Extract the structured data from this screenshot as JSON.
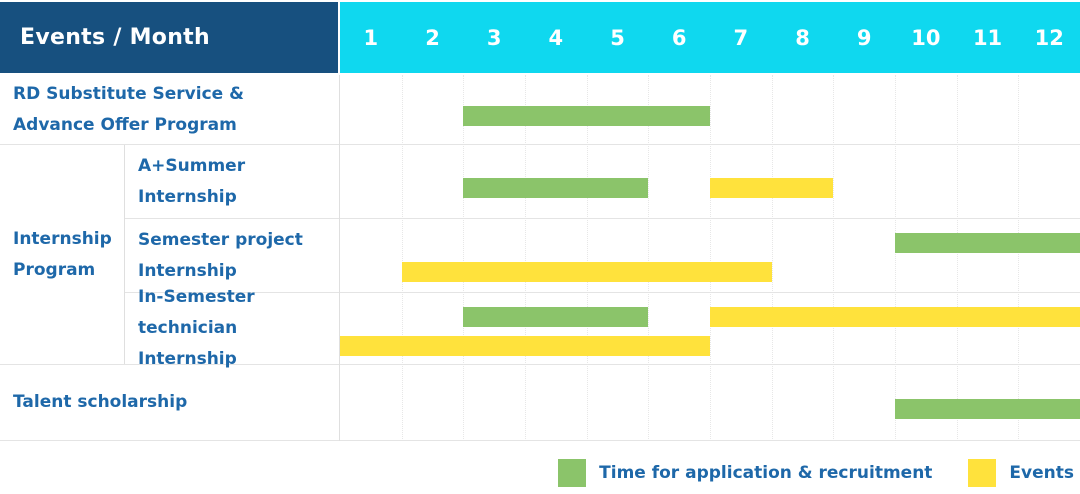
{
  "header": {
    "title": "Events / Month",
    "months": [
      "1",
      "2",
      "3",
      "4",
      "5",
      "6",
      "7",
      "8",
      "9",
      "10",
      "11",
      "12"
    ]
  },
  "group": {
    "label": "Internship\nProgram"
  },
  "chart_data": {
    "type": "gantt",
    "x_axis": {
      "label": "Month",
      "ticks": [
        "1",
        "2",
        "3",
        "4",
        "5",
        "6",
        "7",
        "8",
        "9",
        "10",
        "11",
        "12"
      ],
      "range": [
        1,
        12
      ]
    },
    "legend_position": "bottom-right",
    "rows": [
      {
        "label": "RD Substitute Service &\nAdvance Offer Program",
        "group": null,
        "bars": [
          {
            "series": "Time for application & recruitment",
            "type": "application",
            "lane": "single",
            "start_month": 3,
            "end_month": 6
          }
        ]
      },
      {
        "label": "A+Summer\nInternship",
        "group": "Internship Program",
        "bars": [
          {
            "series": "Time for application & recruitment",
            "type": "application",
            "lane": "single",
            "start_month": 3,
            "end_month": 5
          },
          {
            "series": "Events",
            "type": "event",
            "lane": "single",
            "start_month": 7,
            "end_month": 8
          }
        ]
      },
      {
        "label": "Semester project\nInternship",
        "group": "Internship Program",
        "bars": [
          {
            "series": "Time for application & recruitment",
            "type": "application",
            "lane": "upper",
            "start_month": 10,
            "end_month": 12
          },
          {
            "series": "Events",
            "type": "event",
            "lane": "lower",
            "start_month": 2,
            "end_month": 7
          }
        ]
      },
      {
        "label": "In-Semester\ntechnician Internship",
        "group": "Internship Program",
        "bars": [
          {
            "series": "Time for application & recruitment",
            "type": "application",
            "lane": "upper",
            "start_month": 3,
            "end_month": 5
          },
          {
            "series": "Events",
            "type": "event",
            "lane": "upper",
            "start_month": 7,
            "end_month": 12
          },
          {
            "series": "Events",
            "type": "event",
            "lane": "lower",
            "start_month": 1,
            "end_month": 6
          }
        ]
      },
      {
        "label": "Talent scholarship",
        "group": null,
        "bars": [
          {
            "series": "Time for application & recruitment",
            "type": "application",
            "lane": "single",
            "start_month": 10,
            "end_month": 12
          }
        ]
      }
    ]
  },
  "legend": [
    {
      "label": "Time for application & recruitment",
      "type": "application",
      "color": "#8BC46A"
    },
    {
      "label": "Events",
      "type": "event",
      "color": "#FFE23C"
    }
  ],
  "colors": {
    "header_navy": "#17507F",
    "header_cyan": "#0FD8EF",
    "label_blue": "#1E68A9",
    "application_green": "#8BC46A",
    "event_yellow": "#FFE23C"
  }
}
